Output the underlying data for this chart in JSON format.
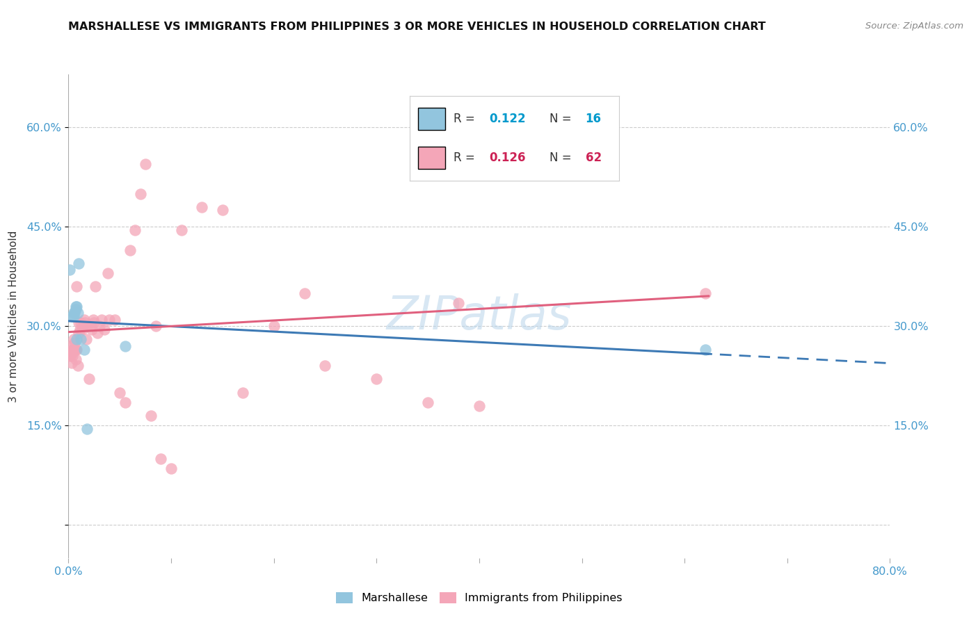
{
  "title": "MARSHALLESE VS IMMIGRANTS FROM PHILIPPINES 3 OR MORE VEHICLES IN HOUSEHOLD CORRELATION CHART",
  "source": "Source: ZipAtlas.com",
  "ylabel": "3 or more Vehicles in Household",
  "yticks": [
    0.0,
    0.15,
    0.3,
    0.45,
    0.6
  ],
  "ytick_labels": [
    "",
    "15.0%",
    "30.0%",
    "45.0%",
    "60.0%"
  ],
  "xlim": [
    0.0,
    0.8
  ],
  "ylim": [
    -0.05,
    0.68
  ],
  "legend_r1": "0.122",
  "legend_n1": "16",
  "legend_r2": "0.126",
  "legend_n2": "62",
  "blue_color": "#92c5de",
  "pink_color": "#f4a6b8",
  "blue_line_color": "#3d7ab5",
  "pink_line_color": "#e0607e",
  "tick_color": "#4499cc",
  "watermark": "ZIPatlas",
  "marshallese_x": [
    0.001,
    0.004,
    0.005,
    0.005,
    0.006,
    0.007,
    0.007,
    0.008,
    0.008,
    0.009,
    0.01,
    0.012,
    0.015,
    0.018,
    0.055,
    0.62
  ],
  "marshallese_y": [
    0.385,
    0.315,
    0.315,
    0.32,
    0.32,
    0.325,
    0.33,
    0.28,
    0.33,
    0.32,
    0.395,
    0.28,
    0.265,
    0.145,
    0.27,
    0.265
  ],
  "philippines_x": [
    0.001,
    0.002,
    0.003,
    0.003,
    0.004,
    0.004,
    0.004,
    0.005,
    0.005,
    0.006,
    0.006,
    0.007,
    0.007,
    0.008,
    0.008,
    0.009,
    0.01,
    0.01,
    0.011,
    0.012,
    0.013,
    0.014,
    0.015,
    0.016,
    0.017,
    0.018,
    0.02,
    0.022,
    0.023,
    0.024,
    0.025,
    0.026,
    0.028,
    0.03,
    0.032,
    0.035,
    0.038,
    0.04,
    0.045,
    0.05,
    0.055,
    0.06,
    0.065,
    0.07,
    0.075,
    0.08,
    0.085,
    0.09,
    0.1,
    0.11,
    0.13,
    0.15,
    0.17,
    0.2,
    0.23,
    0.25,
    0.3,
    0.35,
    0.38,
    0.4,
    0.45,
    0.62
  ],
  "philippines_y": [
    0.27,
    0.255,
    0.26,
    0.245,
    0.26,
    0.265,
    0.255,
    0.265,
    0.28,
    0.265,
    0.275,
    0.25,
    0.265,
    0.265,
    0.36,
    0.24,
    0.29,
    0.305,
    0.295,
    0.305,
    0.295,
    0.3,
    0.31,
    0.305,
    0.28,
    0.3,
    0.22,
    0.3,
    0.295,
    0.31,
    0.305,
    0.36,
    0.29,
    0.3,
    0.31,
    0.295,
    0.38,
    0.31,
    0.31,
    0.2,
    0.185,
    0.415,
    0.445,
    0.5,
    0.545,
    0.165,
    0.3,
    0.1,
    0.085,
    0.445,
    0.48,
    0.475,
    0.2,
    0.3,
    0.35,
    0.24,
    0.22,
    0.185,
    0.335,
    0.18,
    0.55,
    0.35
  ]
}
